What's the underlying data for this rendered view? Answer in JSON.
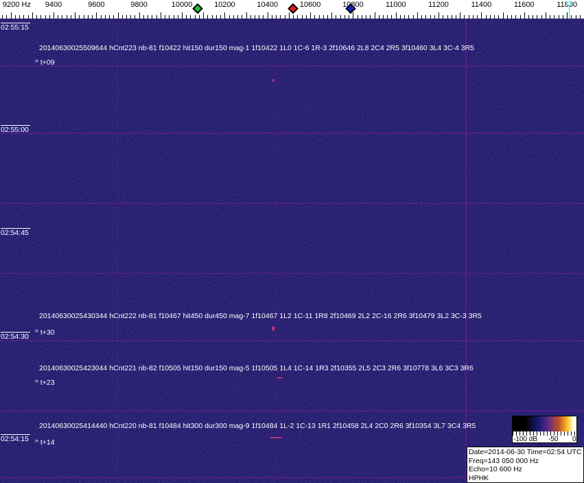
{
  "axis": {
    "unit_label": "9200 Hz",
    "freq_labels": [
      9400,
      9600,
      9800,
      10000,
      10200,
      10400,
      10600,
      10800,
      11000,
      11200,
      11400,
      11600,
      11800
    ]
  },
  "markers": [
    {
      "name": "green-marker",
      "freq": 10075,
      "color": "#22c22a"
    },
    {
      "name": "red-marker",
      "freq": 10520,
      "color": "#e02020"
    },
    {
      "name": "blue-marker",
      "freq": 10790,
      "color": "#1020c0"
    },
    {
      "name": "cyan-marker",
      "freq": 11810,
      "color": "#30e0f0"
    }
  ],
  "time_labels": [
    "02:55:15",
    "02:55:00",
    "02:54:45",
    "02:54:30",
    "02:54:15"
  ],
  "detections": [
    {
      "text": "20140630025509644 hCnt223 nb-81 f10422 hit150 dur150 mag-1 1f10422 1L0 1C-6 1R-3 2f10646 2L8 2C4 2R5 3f10460 3L4 3C-4 3R5",
      "offset": "^ t+09"
    },
    {
      "text": "20140630025430344 hCnt222 nb-81 f10467 hit450 dur450 mag-7 1f10467 1L2 1C-11 1R8 2f10469 2L2 2C-16 2R6 3f10479 3L2 3C-3 3R5",
      "offset": "^ t+30"
    },
    {
      "text": "20140630025423044 hCnt221 nb-82 f10505 hit150 dur150 mag-5 1f10505 1L4 1C-14 1R3 2f10355 2L5 2C3 2R6 3f10778 3L6 3C3 3R6",
      "offset": "^ t+23"
    },
    {
      "text": "20140630025414440 hCnt220 nb-81 f10484 hit300 dur300 mag-9 1f10484 1L-2 1C-13 1R1 2f10458 2L4 2C0 2R6 3f10354 3L7 3C4 3R5",
      "offset": "^ t+14"
    }
  ],
  "colorbar": {
    "labels": [
      "-100 dB",
      "-50",
      "0"
    ]
  },
  "info": {
    "date_time": "Date=2014-06-30 Time=02:54 UTC",
    "freq": "Freq=143 050 000 Hz",
    "echo": "Echo=10 600 Hz",
    "station": "HPHK"
  }
}
